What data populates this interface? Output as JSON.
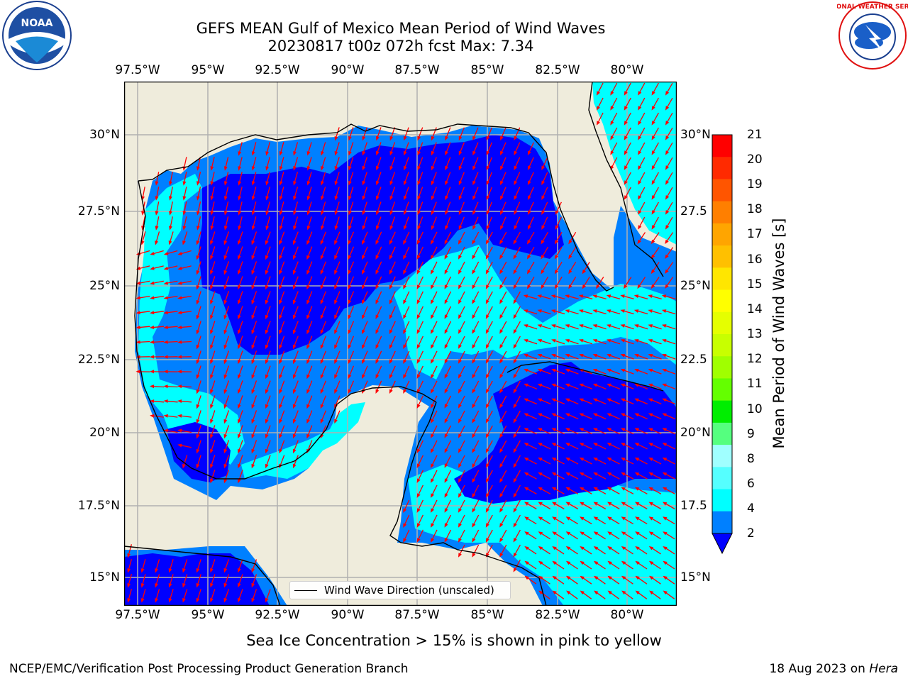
{
  "title": {
    "line1": "GEFS MEAN Gulf of Mexico Mean Period of Wind Waves",
    "line2": "20230817 t00z 072h fcst   Max: 7.34"
  },
  "map": {
    "lon_labels": [
      "97.5°W",
      "95°W",
      "92.5°W",
      "90°W",
      "87.5°W",
      "85°W",
      "82.5°W",
      "80°W"
    ],
    "lat_labels_left": [
      "30°N",
      "27.5°N",
      "25°N",
      "22.5°N",
      "20°N",
      "17.5°N",
      "15°N"
    ],
    "lat_labels_right": [
      "30°N",
      "27.5",
      "25°N",
      "22.5",
      "20°N",
      "17.5",
      "15°N"
    ],
    "lon_range": [
      -98,
      -78.2
    ],
    "lat_range": [
      14,
      31.6
    ],
    "colors": {
      "land": "#efecdc",
      "coast": "#000000",
      "arrow": "#ff0000",
      "grid": "#b0b0b0"
    }
  },
  "legend": {
    "label": "Wind Wave Direction (unscaled)"
  },
  "colorbar": {
    "title": "Mean Period of Wind Waves [s]",
    "labels": [
      "21",
      "20",
      "19",
      "18",
      "17",
      "16",
      "15",
      "14",
      "13",
      "12",
      "11",
      "10",
      "9",
      "8",
      "6",
      "4",
      "2"
    ],
    "colors": [
      "#ff0000",
      "#ff2a00",
      "#ff5500",
      "#ff7f00",
      "#ffa500",
      "#ffc000",
      "#ffe600",
      "#ffff00",
      "#e5ff00",
      "#c8ff00",
      "#a0ff00",
      "#64ff00",
      "#00ee00",
      "#55ff7f",
      "#a0ffff",
      "#55ffff",
      "#00ffff",
      "#0080ff"
    ],
    "extend_color": "#0000ff"
  },
  "note": "Sea Ice Concentration > 15% is shown in pink to yellow",
  "footer": {
    "left": "NCEP/EMC/Verification Post Processing Product Generation Branch",
    "right_date": "18 Aug 2023 on ",
    "right_host": "Hera"
  },
  "logos": {
    "noaa_text": "NOAA",
    "nws_text": "NATIONAL WEATHER SERVICE"
  }
}
